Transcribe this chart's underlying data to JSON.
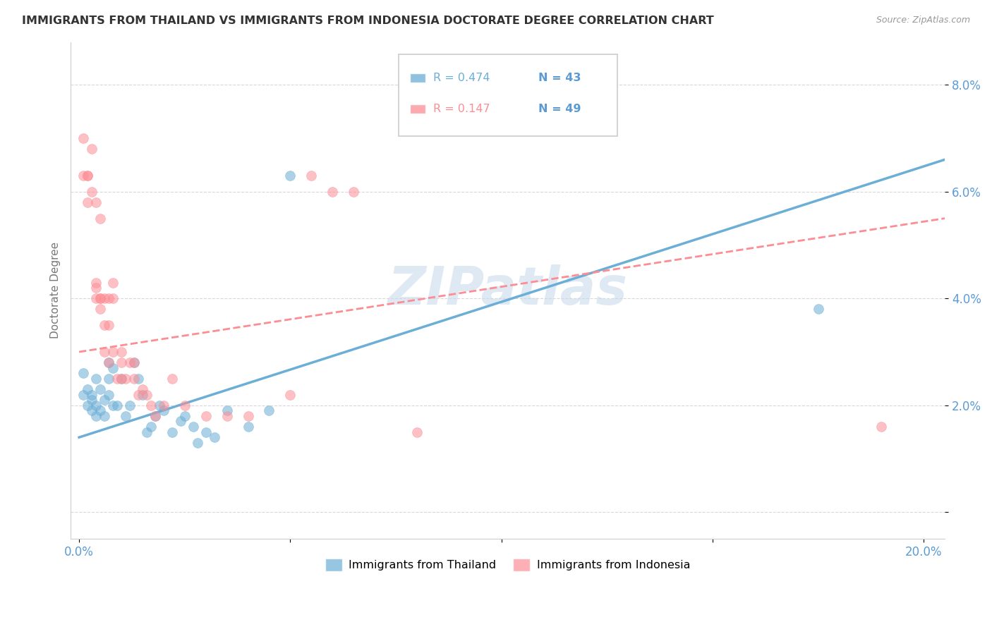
{
  "title": "IMMIGRANTS FROM THAILAND VS IMMIGRANTS FROM INDONESIA DOCTORATE DEGREE CORRELATION CHART",
  "source": "Source: ZipAtlas.com",
  "ylabel": "Doctorate Degree",
  "yticks": [
    0.0,
    0.02,
    0.04,
    0.06,
    0.08
  ],
  "ytick_labels": [
    "",
    "2.0%",
    "4.0%",
    "6.0%",
    "8.0%"
  ],
  "xticks": [
    0.0,
    0.05,
    0.1,
    0.15,
    0.2
  ],
  "xtick_labels": [
    "0.0%",
    "",
    "",
    "",
    "20.0%"
  ],
  "xlim": [
    -0.002,
    0.205
  ],
  "ylim": [
    -0.005,
    0.088
  ],
  "legend_r1": "0.474",
  "legend_n1": "43",
  "legend_r2": "0.147",
  "legend_n2": "49",
  "thailand_color": "#6baed6",
  "indonesia_color": "#fc8d94",
  "watermark": "ZIPatlas",
  "thailand_points": [
    [
      0.001,
      0.026
    ],
    [
      0.001,
      0.022
    ],
    [
      0.002,
      0.023
    ],
    [
      0.002,
      0.02
    ],
    [
      0.003,
      0.021
    ],
    [
      0.003,
      0.019
    ],
    [
      0.003,
      0.022
    ],
    [
      0.004,
      0.02
    ],
    [
      0.004,
      0.018
    ],
    [
      0.004,
      0.025
    ],
    [
      0.005,
      0.023
    ],
    [
      0.005,
      0.019
    ],
    [
      0.006,
      0.021
    ],
    [
      0.006,
      0.018
    ],
    [
      0.007,
      0.028
    ],
    [
      0.007,
      0.025
    ],
    [
      0.007,
      0.022
    ],
    [
      0.008,
      0.027
    ],
    [
      0.008,
      0.02
    ],
    [
      0.009,
      0.02
    ],
    [
      0.01,
      0.025
    ],
    [
      0.011,
      0.018
    ],
    [
      0.012,
      0.02
    ],
    [
      0.013,
      0.028
    ],
    [
      0.014,
      0.025
    ],
    [
      0.015,
      0.022
    ],
    [
      0.016,
      0.015
    ],
    [
      0.017,
      0.016
    ],
    [
      0.018,
      0.018
    ],
    [
      0.019,
      0.02
    ],
    [
      0.02,
      0.019
    ],
    [
      0.022,
      0.015
    ],
    [
      0.024,
      0.017
    ],
    [
      0.025,
      0.018
    ],
    [
      0.027,
      0.016
    ],
    [
      0.028,
      0.013
    ],
    [
      0.03,
      0.015
    ],
    [
      0.032,
      0.014
    ],
    [
      0.035,
      0.019
    ],
    [
      0.04,
      0.016
    ],
    [
      0.045,
      0.019
    ],
    [
      0.05,
      0.063
    ],
    [
      0.175,
      0.038
    ]
  ],
  "indonesia_points": [
    [
      0.001,
      0.07
    ],
    [
      0.001,
      0.063
    ],
    [
      0.002,
      0.063
    ],
    [
      0.002,
      0.063
    ],
    [
      0.002,
      0.058
    ],
    [
      0.003,
      0.06
    ],
    [
      0.003,
      0.068
    ],
    [
      0.004,
      0.043
    ],
    [
      0.004,
      0.042
    ],
    [
      0.004,
      0.04
    ],
    [
      0.004,
      0.058
    ],
    [
      0.005,
      0.04
    ],
    [
      0.005,
      0.04
    ],
    [
      0.005,
      0.038
    ],
    [
      0.005,
      0.055
    ],
    [
      0.006,
      0.035
    ],
    [
      0.006,
      0.03
    ],
    [
      0.006,
      0.04
    ],
    [
      0.007,
      0.04
    ],
    [
      0.007,
      0.035
    ],
    [
      0.007,
      0.028
    ],
    [
      0.008,
      0.03
    ],
    [
      0.008,
      0.04
    ],
    [
      0.008,
      0.043
    ],
    [
      0.009,
      0.025
    ],
    [
      0.01,
      0.03
    ],
    [
      0.01,
      0.028
    ],
    [
      0.01,
      0.025
    ],
    [
      0.011,
      0.025
    ],
    [
      0.012,
      0.028
    ],
    [
      0.013,
      0.028
    ],
    [
      0.013,
      0.025
    ],
    [
      0.014,
      0.022
    ],
    [
      0.015,
      0.023
    ],
    [
      0.016,
      0.022
    ],
    [
      0.017,
      0.02
    ],
    [
      0.018,
      0.018
    ],
    [
      0.02,
      0.02
    ],
    [
      0.022,
      0.025
    ],
    [
      0.025,
      0.02
    ],
    [
      0.03,
      0.018
    ],
    [
      0.035,
      0.018
    ],
    [
      0.04,
      0.018
    ],
    [
      0.05,
      0.022
    ],
    [
      0.055,
      0.063
    ],
    [
      0.06,
      0.06
    ],
    [
      0.065,
      0.06
    ],
    [
      0.08,
      0.015
    ],
    [
      0.19,
      0.016
    ]
  ],
  "thailand_line_x": [
    0.0,
    0.205
  ],
  "thailand_line_y": [
    0.014,
    0.066
  ],
  "indonesia_line_x": [
    0.0,
    0.205
  ],
  "indonesia_line_y": [
    0.03,
    0.055
  ],
  "background_color": "#ffffff",
  "grid_color": "#d8d8d8",
  "title_color": "#333333",
  "axis_label_color": "#5b9bd5",
  "marker_size": 100
}
